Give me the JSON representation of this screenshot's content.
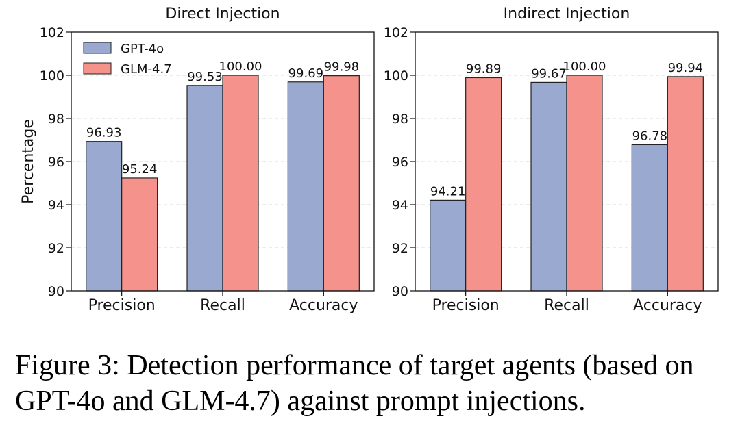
{
  "chart_data": [
    {
      "type": "bar",
      "title": "Direct Injection",
      "ylabel": "Percentage",
      "xlabel": "",
      "categories": [
        "Precision",
        "Recall",
        "Accuracy"
      ],
      "series": [
        {
          "name": "GPT-4o",
          "values": [
            96.93,
            99.53,
            99.69
          ],
          "labels": [
            "96.93",
            "99.53",
            "99.69"
          ]
        },
        {
          "name": "GLM-4.7",
          "values": [
            95.24,
            100.0,
            99.98
          ],
          "labels": [
            "95.24",
            "100.00",
            "99.98"
          ]
        }
      ],
      "ylim": [
        90,
        102
      ],
      "yticks": [
        "90",
        "92",
        "94",
        "96",
        "98",
        "100",
        "102"
      ],
      "grid": "y-dashed",
      "legend": "top-left"
    },
    {
      "type": "bar",
      "title": "Indirect Injection",
      "ylabel": "",
      "xlabel": "",
      "categories": [
        "Precision",
        "Recall",
        "Accuracy"
      ],
      "series": [
        {
          "name": "GPT-4o",
          "values": [
            94.21,
            99.67,
            96.78
          ],
          "labels": [
            "94.21",
            "99.67",
            "96.78"
          ]
        },
        {
          "name": "GLM-4.7",
          "values": [
            99.89,
            100.0,
            99.94
          ],
          "labels": [
            "99.89",
            "100.00",
            "99.94"
          ]
        }
      ],
      "ylim": [
        90,
        102
      ],
      "yticks": [
        "90",
        "92",
        "94",
        "96",
        "98",
        "100",
        "102"
      ],
      "grid": "y-dashed",
      "legend": "none"
    }
  ],
  "colors": {
    "gpt": "#9aa9cf",
    "glm": "#f4928b",
    "edge": "#222222",
    "grid": "#d9d9d9"
  },
  "caption": "Figure 3: Detection performance of target agents (based on GPT-4o and GLM-4.7) against prompt injections."
}
